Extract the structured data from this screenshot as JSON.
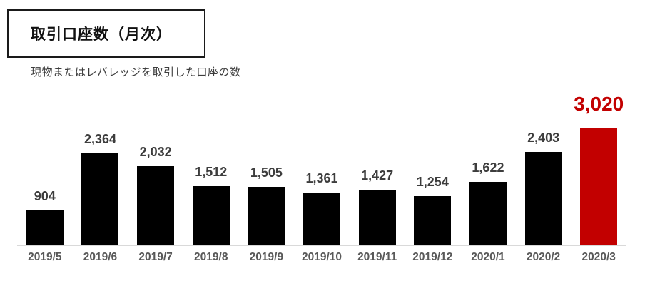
{
  "header": {
    "title": "取引口座数（月次）",
    "subtitle": "現物またはレバレッジを取引した口座の数"
  },
  "chart_data": {
    "type": "bar",
    "title": "取引口座数（月次）",
    "subtitle": "現物またはレバレッジを取引した口座の数",
    "categories": [
      "2019/5",
      "2019/6",
      "2019/7",
      "2019/8",
      "2019/9",
      "2019/10",
      "2019/11",
      "2019/12",
      "2020/1",
      "2020/2",
      "2020/3"
    ],
    "values": [
      904,
      2364,
      2032,
      1512,
      1505,
      1361,
      1427,
      1254,
      1622,
      2403,
      3020
    ],
    "value_labels": [
      "904",
      "2,364",
      "2,032",
      "1,512",
      "1,505",
      "1,361",
      "1,427",
      "1,254",
      "1,622",
      "2,403",
      "3,020"
    ],
    "highlight_index": 10,
    "highlight_label": "3,020",
    "xlabel": "",
    "ylabel": "",
    "ylim": [
      0,
      3200
    ],
    "grid": false,
    "legend": "none",
    "colors": {
      "bar": "#000000",
      "highlight_bar": "#c20000",
      "value_label": "#3d3d3d",
      "highlight_value_label": "#c20000",
      "axis_label": "#595959",
      "axis_line": "#d9d9d9",
      "background": "#ffffff"
    }
  }
}
